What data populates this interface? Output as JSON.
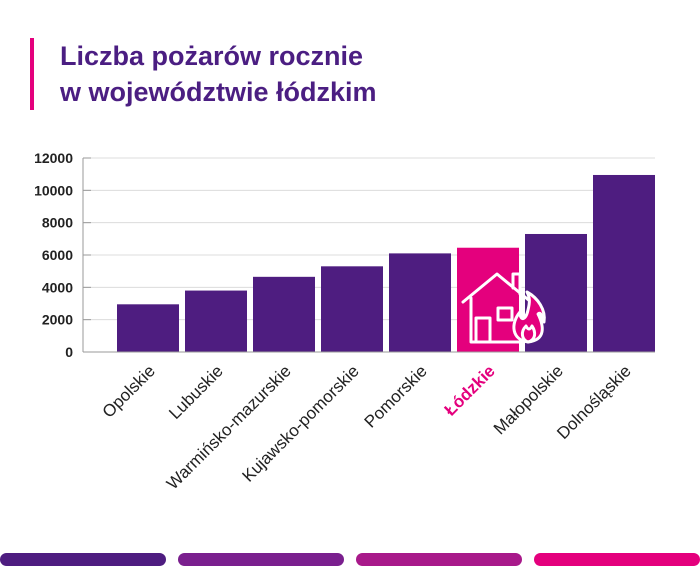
{
  "title": {
    "line1": "Liczba pożarów rocznie",
    "line2": "w województwie łódzkim"
  },
  "colors": {
    "bar": "#4e1d80",
    "highlight": "#e4007d",
    "title": "#4b1e82",
    "grid": "#dcdcdc",
    "axis_text": "#222222"
  },
  "icons": [
    "house-fire-icon"
  ],
  "chart_data": {
    "type": "bar",
    "title": "Liczba pożarów rocznie w województwie łódzkim",
    "xlabel": "",
    "ylabel": "",
    "categories": [
      "Opolskie",
      "Lubuskie",
      "Warmińsko-mazurskie",
      "Kujawsko-pomorskie",
      "Pomorskie",
      "Łódzkie",
      "Małopolskie",
      "Dolnośląskie"
    ],
    "values": [
      2950,
      3800,
      4650,
      5300,
      6100,
      6450,
      7300,
      10950
    ],
    "highlight": "Łódzkie",
    "ylim": [
      0,
      12000
    ],
    "yticks": [
      0,
      2000,
      4000,
      6000,
      8000,
      10000,
      12000
    ],
    "grid": true,
    "legend": "none"
  },
  "footer_colors": [
    "#4e1d80",
    "#7a1f8e",
    "#a8198a",
    "#e4007d"
  ]
}
